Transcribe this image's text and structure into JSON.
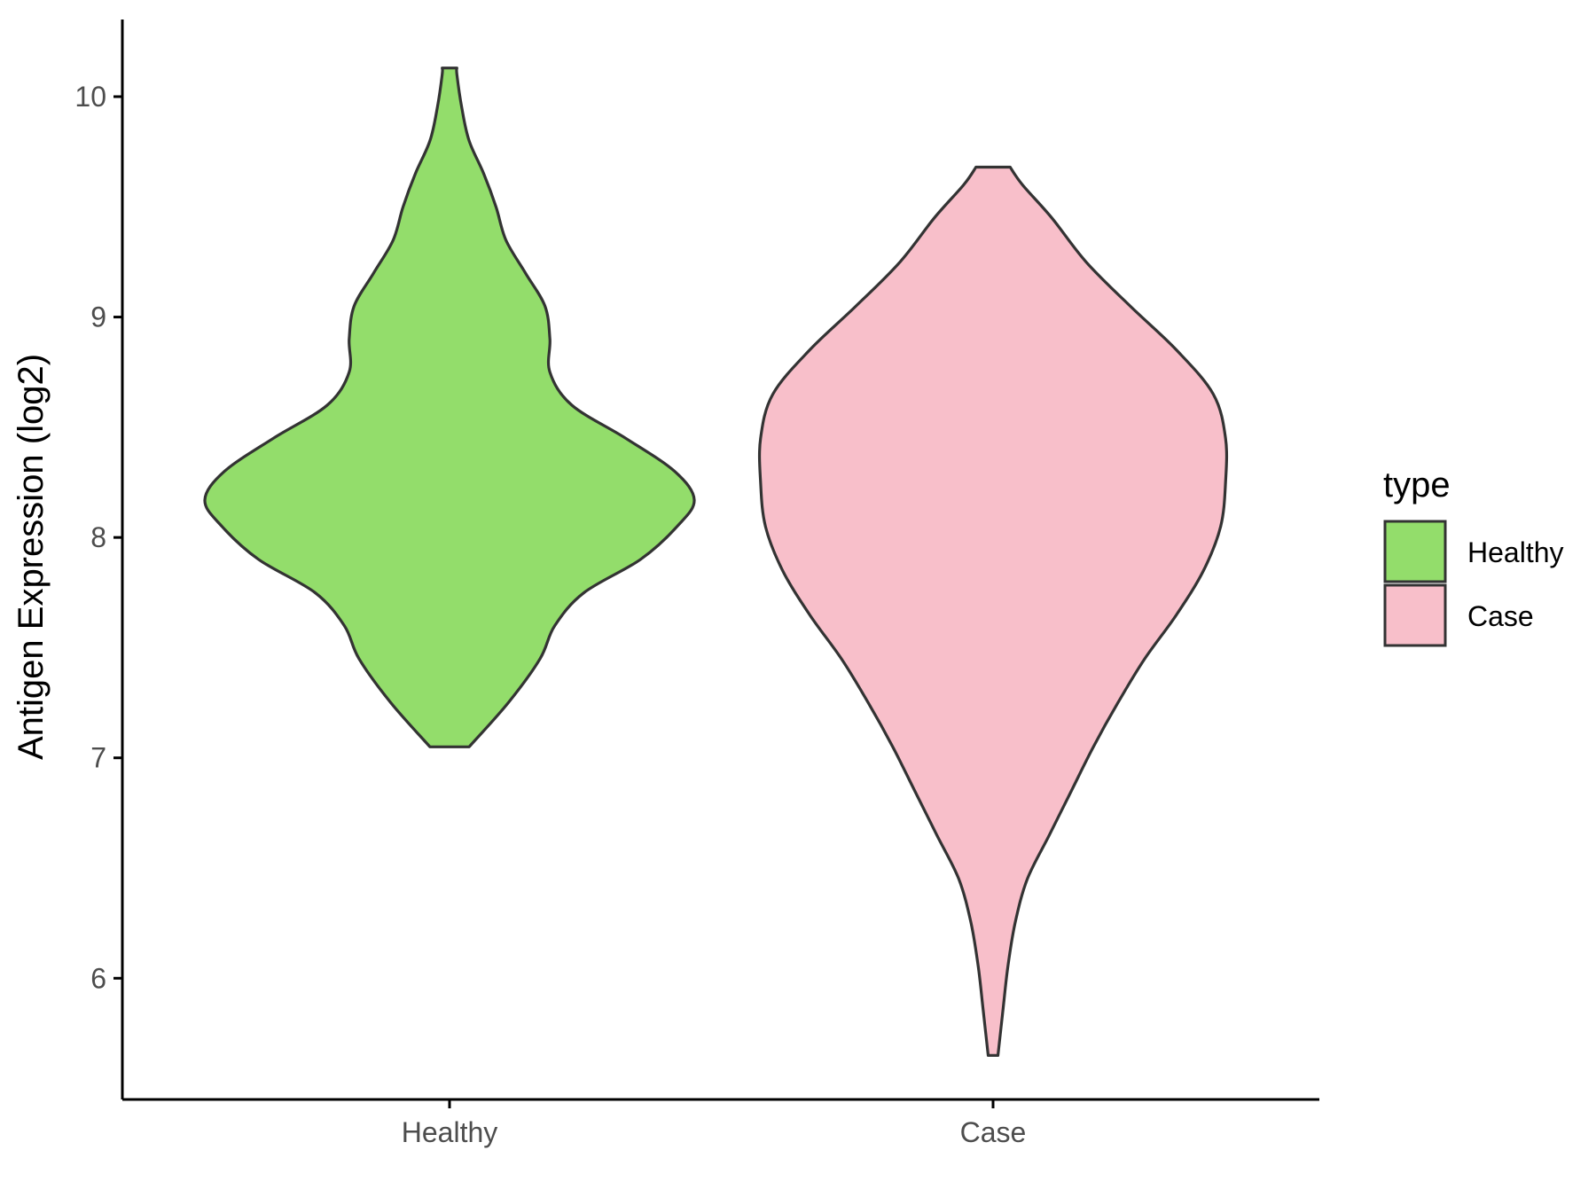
{
  "chart_data": {
    "type": "violin",
    "title": "",
    "xlabel": "",
    "ylabel": "Antigen Expression (log2)",
    "ylim": [
      5.45,
      10.35
    ],
    "yticks": [
      6,
      7,
      8,
      9,
      10
    ],
    "categories": [
      "Healthy",
      "Case"
    ],
    "series": [
      {
        "name": "Healthy",
        "color": "#93dd6b",
        "min": 7.05,
        "max": 10.13,
        "density_profile": [
          [
            7.05,
            0.08
          ],
          [
            7.25,
            0.24
          ],
          [
            7.45,
            0.37
          ],
          [
            7.6,
            0.43
          ],
          [
            7.75,
            0.55
          ],
          [
            7.9,
            0.78
          ],
          [
            8.05,
            0.93
          ],
          [
            8.17,
            1.0
          ],
          [
            8.3,
            0.92
          ],
          [
            8.45,
            0.72
          ],
          [
            8.6,
            0.5
          ],
          [
            8.75,
            0.41
          ],
          [
            8.9,
            0.41
          ],
          [
            9.05,
            0.39
          ],
          [
            9.2,
            0.31
          ],
          [
            9.35,
            0.23
          ],
          [
            9.5,
            0.19
          ],
          [
            9.65,
            0.14
          ],
          [
            9.8,
            0.08
          ],
          [
            9.95,
            0.05
          ],
          [
            10.1,
            0.03
          ],
          [
            10.13,
            0.03
          ]
        ]
      },
      {
        "name": "Case",
        "color": "#f8bfca",
        "min": 5.65,
        "max": 9.68,
        "density_profile": [
          [
            5.65,
            0.02
          ],
          [
            5.85,
            0.04
          ],
          [
            6.05,
            0.06
          ],
          [
            6.25,
            0.09
          ],
          [
            6.45,
            0.14
          ],
          [
            6.65,
            0.23
          ],
          [
            6.85,
            0.32
          ],
          [
            7.05,
            0.41
          ],
          [
            7.25,
            0.51
          ],
          [
            7.45,
            0.62
          ],
          [
            7.65,
            0.75
          ],
          [
            7.85,
            0.86
          ],
          [
            8.05,
            0.93
          ],
          [
            8.25,
            0.95
          ],
          [
            8.45,
            0.95
          ],
          [
            8.65,
            0.9
          ],
          [
            8.85,
            0.75
          ],
          [
            9.05,
            0.56
          ],
          [
            9.25,
            0.38
          ],
          [
            9.45,
            0.24
          ],
          [
            9.6,
            0.12
          ],
          [
            9.68,
            0.07
          ]
        ]
      }
    ],
    "legend": {
      "title": "type",
      "position": "right",
      "entries": [
        {
          "label": "Healthy",
          "color": "#93dd6b"
        },
        {
          "label": "Case",
          "color": "#f8bfca"
        }
      ]
    },
    "grid": false
  }
}
